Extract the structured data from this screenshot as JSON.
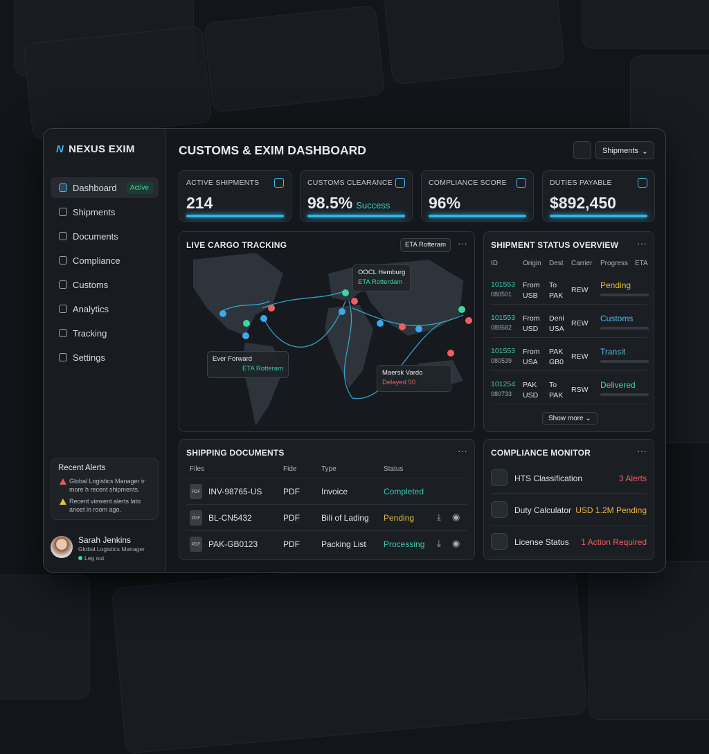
{
  "brand": "NEXUS EXIM",
  "header": {
    "title": "CUSTOMS & EXIM DASHBOARD",
    "dropdown": "Shipments"
  },
  "nav": [
    {
      "label": "Dashboard",
      "badge": "Active"
    },
    {
      "label": "Shipments"
    },
    {
      "label": "Documents"
    },
    {
      "label": "Compliance"
    },
    {
      "label": "Customs"
    },
    {
      "label": "Analytics"
    },
    {
      "label": "Tracking"
    },
    {
      "label": "Settings"
    }
  ],
  "alerts": {
    "title": "Recent Alerts",
    "items": [
      "Global Logistics Manager ir more h recent shipments.",
      "Recent viewent alerts lato anoet in room ago."
    ]
  },
  "user": {
    "name": "Sarah Jenkins",
    "role": "Global Logistics Manager",
    "status": "Leg out"
  },
  "kpis": [
    {
      "label": "ACTIVE SHIPMENTS",
      "value": "214"
    },
    {
      "label": "CUSTOMS CLEARANCE",
      "value": "98.5%",
      "note": "Success"
    },
    {
      "label": "COMPLIANCE SCORE",
      "value": "96%"
    },
    {
      "label": "DUTIES PAYABLE",
      "value": "$892,450"
    }
  ],
  "map": {
    "title": "LIVE CARGO TRACKING",
    "filter": "ETA Rotteram",
    "vessels": [
      {
        "name": "OOCL Hemburg",
        "status": "ETA Rotterdam"
      },
      {
        "name": "Ever Forward",
        "status": "ETA Rotteram"
      },
      {
        "name": "Maersk Vardo",
        "status": "Delayed 50"
      }
    ]
  },
  "status_table": {
    "title": "SHIPMENT STATUS OVERVIEW",
    "columns": [
      "ID",
      "Origin",
      "Dest",
      "Carrier",
      "Progress",
      "ETA"
    ],
    "rows": [
      {
        "id": "101553",
        "sub_id": "080501",
        "origin": "From USB",
        "dest": "To PAK",
        "carrier": "REW",
        "status": "Pending"
      },
      {
        "id": "101553",
        "sub_id": "089582",
        "origin": "From USD",
        "dest": "Deni USA",
        "carrier": "REW",
        "status": "Customs"
      },
      {
        "id": "101553",
        "sub_id": "080539",
        "origin": "From USA",
        "dest": "PAK GB0",
        "carrier": "REW",
        "status": "Transit"
      },
      {
        "id": "101254",
        "sub_id": "080733",
        "origin": "PAK USD",
        "dest": "To PAK",
        "carrier": "RSW",
        "status": "Delivered"
      }
    ],
    "action": "Show more"
  },
  "documents": {
    "title": "SHIPPING DOCUMENTS",
    "columns": [
      "Files",
      "Fide",
      "Type",
      "Status"
    ],
    "rows": [
      {
        "file": "INV-98765-US",
        "format": "PDF",
        "type": "Invoice",
        "status": "Completed"
      },
      {
        "file": "BL-CN5432",
        "format": "PDF",
        "type": "Bili of Lading",
        "status": "Pending"
      },
      {
        "file": "PAK-GB0123",
        "format": "PDF",
        "type": "Packing List",
        "status": "Processing"
      }
    ]
  },
  "compliance": {
    "title": "COMPLIANCE MONITOR",
    "items": [
      {
        "label": "HTS Classification",
        "status": "3 Alerts"
      },
      {
        "label": "Duty Calculator",
        "status": "USD 1.2M Pending"
      },
      {
        "label": "License Status",
        "status": "1 Action Required"
      }
    ]
  }
}
